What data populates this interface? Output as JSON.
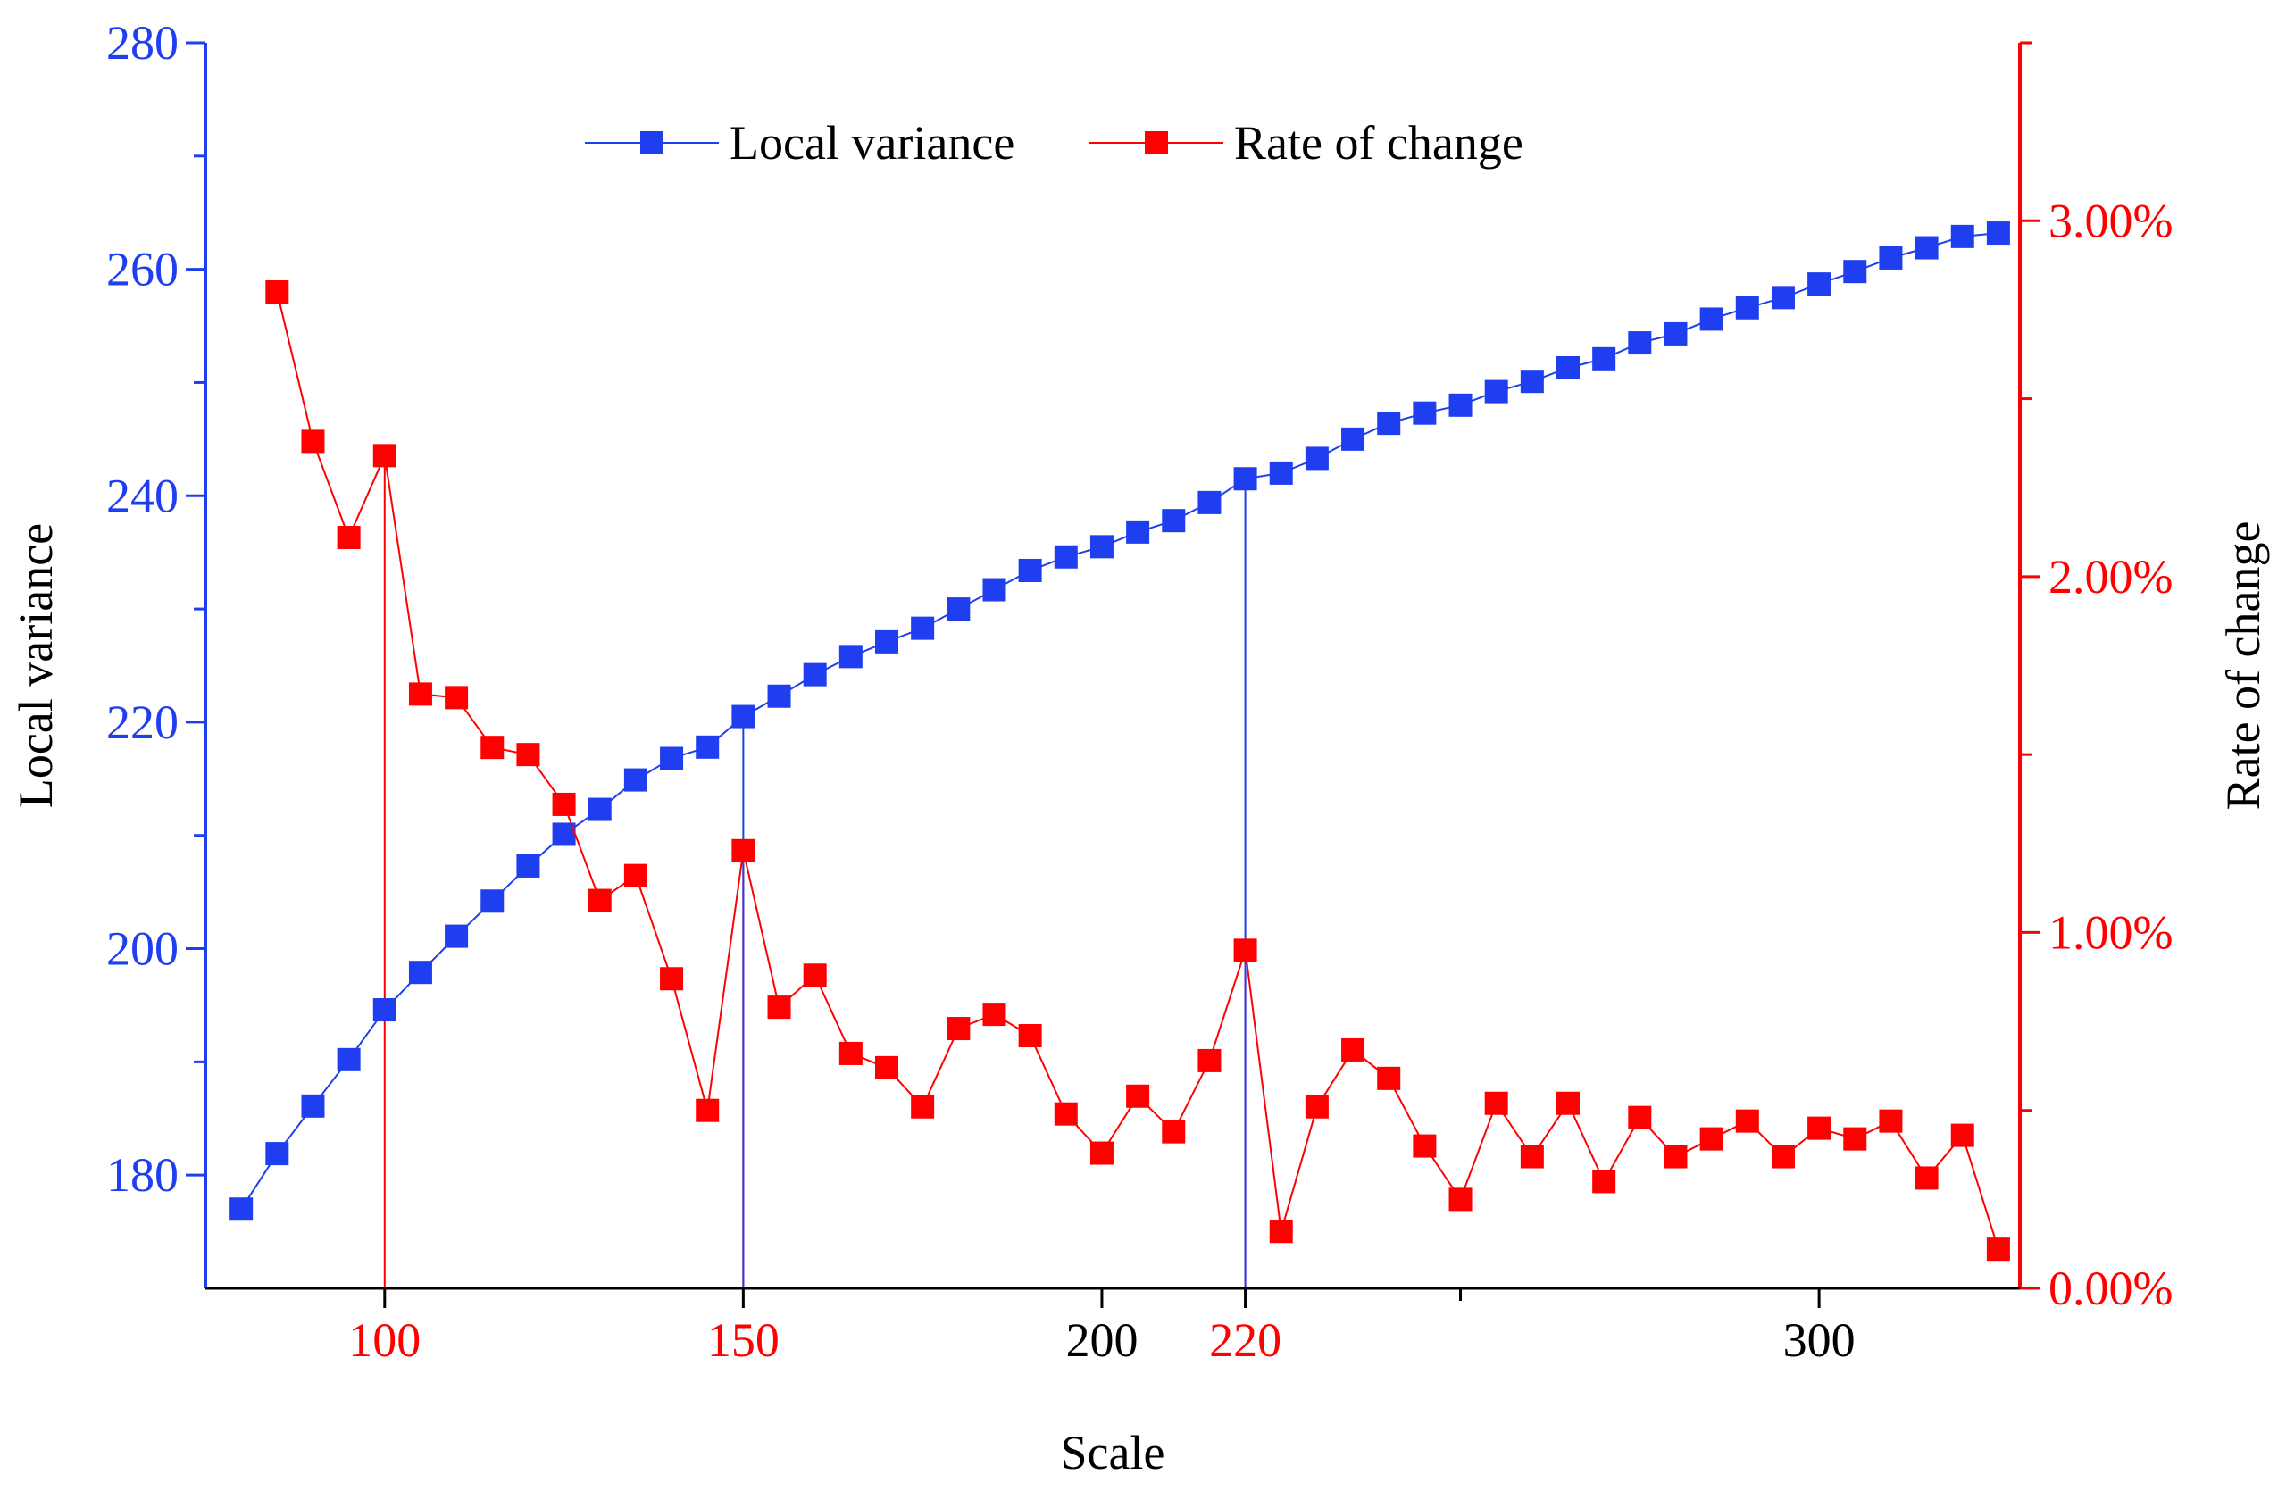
{
  "chart_data": {
    "type": "line",
    "xlabel": "Scale",
    "ylabel_left": "Local variance",
    "ylabel_right": "Rate of change",
    "xlim": [
      75,
      328
    ],
    "ylim_left": [
      170,
      280
    ],
    "ylim_right": [
      0,
      3.5
    ],
    "x_ticks": [
      {
        "value": 100,
        "label": "100",
        "color": "#ff0000"
      },
      {
        "value": 150,
        "label": "150",
        "color": "#ff0000"
      },
      {
        "value": 200,
        "label": "200",
        "color": "#000000"
      },
      {
        "value": 220,
        "label": "220",
        "color": "#ff0000"
      },
      {
        "value": 300,
        "label": "300",
        "color": "#000000"
      }
    ],
    "x_minor_ticks": [
      250
    ],
    "y_left_ticks": [
      180,
      200,
      220,
      240,
      260,
      280
    ],
    "y_left_minor_ticks": [
      190,
      210,
      230,
      250,
      270
    ],
    "y_right_ticks": [
      {
        "value": 0,
        "label": "0.00%"
      },
      {
        "value": 1,
        "label": "1.00%"
      },
      {
        "value": 2,
        "label": "2.00%"
      },
      {
        "value": 3,
        "label": "3.00%"
      }
    ],
    "y_right_minor_ticks": [
      0.5,
      1.5,
      2.5
    ],
    "legend_position": "top-center",
    "colors": {
      "local_variance": "#1f3ef0",
      "rate_of_change": "#ff0000",
      "axis_text": "#000000"
    },
    "series": [
      {
        "name": "Local variance",
        "axis": "left",
        "color": "#1f3ef0",
        "marker": "square",
        "x": [
          80,
          85,
          90,
          95,
          100,
          105,
          110,
          115,
          120,
          125,
          130,
          135,
          140,
          145,
          150,
          155,
          160,
          165,
          170,
          175,
          180,
          185,
          190,
          195,
          200,
          205,
          210,
          215,
          220,
          225,
          230,
          235,
          240,
          245,
          250,
          255,
          260,
          265,
          270,
          275,
          280,
          285,
          290,
          295,
          300,
          305,
          310,
          315,
          320,
          325
        ],
        "values": [
          177.0,
          181.9,
          186.1,
          190.2,
          194.6,
          197.9,
          201.1,
          204.2,
          207.3,
          210.1,
          212.3,
          214.9,
          216.8,
          217.8,
          220.5,
          222.3,
          224.2,
          225.8,
          227.1,
          228.3,
          230.0,
          231.7,
          233.4,
          234.6,
          235.5,
          236.8,
          237.8,
          239.4,
          241.5,
          242.0,
          243.3,
          245.0,
          246.4,
          247.3,
          248.0,
          249.2,
          250.1,
          251.3,
          252.1,
          253.5,
          254.3,
          255.6,
          256.6,
          257.5,
          258.7,
          259.8,
          261.0,
          261.9,
          262.9,
          263.2
        ]
      },
      {
        "name": "Rate of change",
        "axis": "right",
        "color": "#ff0000",
        "marker": "square",
        "x": [
          85,
          90,
          95,
          100,
          105,
          110,
          115,
          120,
          125,
          130,
          135,
          140,
          145,
          150,
          155,
          160,
          165,
          170,
          175,
          180,
          185,
          190,
          195,
          200,
          205,
          210,
          215,
          220,
          225,
          230,
          235,
          240,
          245,
          250,
          255,
          260,
          265,
          270,
          275,
          280,
          285,
          290,
          295,
          300,
          305,
          310,
          315,
          320,
          325
        ],
        "values": [
          2.8,
          2.38,
          2.11,
          2.34,
          1.67,
          1.66,
          1.52,
          1.5,
          1.36,
          1.09,
          1.16,
          0.87,
          0.5,
          1.23,
          0.79,
          0.88,
          0.66,
          0.62,
          0.51,
          0.73,
          0.77,
          0.71,
          0.49,
          0.38,
          0.54,
          0.44,
          0.64,
          0.95,
          0.16,
          0.51,
          0.67,
          0.59,
          0.4,
          0.25,
          0.52,
          0.37,
          0.52,
          0.3,
          0.48,
          0.37,
          0.42,
          0.47,
          0.37,
          0.45,
          0.42,
          0.47,
          0.31,
          0.43,
          0.11
        ]
      }
    ],
    "reference_lines": [
      {
        "x": 100,
        "series": "Rate of change",
        "color": "#ff0000"
      },
      {
        "x": 150,
        "series": "Rate of change",
        "color": "#ff0000"
      },
      {
        "x": 150,
        "series": "Local variance",
        "color": "#1f3ef0"
      },
      {
        "x": 220,
        "series": "Rate of change",
        "color": "#ff0000"
      },
      {
        "x": 220,
        "series": "Local variance",
        "color": "#1f3ef0"
      }
    ]
  }
}
